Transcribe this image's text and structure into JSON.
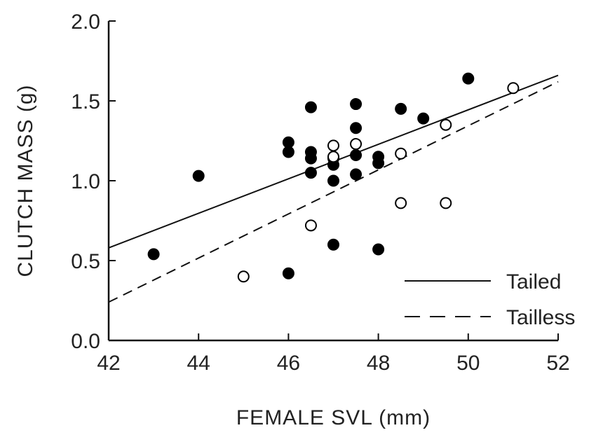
{
  "chart_data": {
    "type": "scatter",
    "xlabel": "FEMALE SVL (mm)",
    "ylabel": "CLUTCH MASS (g)",
    "xlim": [
      42,
      52
    ],
    "ylim": [
      0.0,
      2.0
    ],
    "x_ticks": [
      42,
      44,
      46,
      48,
      50,
      52
    ],
    "x_tick_labels": [
      "42",
      "44",
      "46",
      "48",
      "50",
      "52"
    ],
    "y_ticks": [
      0.0,
      0.5,
      1.0,
      1.5,
      2.0
    ],
    "y_tick_labels": [
      "0.0",
      "0.5",
      "1.0",
      "1.5",
      "2.0"
    ],
    "grid": false,
    "legend_position": "bottom-right",
    "series": [
      {
        "name": "Tailed",
        "marker": "filled-circle",
        "color": "#000000",
        "points": [
          {
            "x": 43.0,
            "y": 0.54
          },
          {
            "x": 44.0,
            "y": 1.03
          },
          {
            "x": 46.0,
            "y": 1.24
          },
          {
            "x": 46.0,
            "y": 1.18
          },
          {
            "x": 46.0,
            "y": 0.42
          },
          {
            "x": 46.5,
            "y": 1.46
          },
          {
            "x": 46.5,
            "y": 1.18
          },
          {
            "x": 46.5,
            "y": 1.14
          },
          {
            "x": 46.5,
            "y": 1.05
          },
          {
            "x": 47.0,
            "y": 1.14
          },
          {
            "x": 47.0,
            "y": 1.1
          },
          {
            "x": 47.0,
            "y": 1.0
          },
          {
            "x": 47.0,
            "y": 0.6
          },
          {
            "x": 47.5,
            "y": 1.48
          },
          {
            "x": 47.5,
            "y": 1.33
          },
          {
            "x": 47.5,
            "y": 1.16
          },
          {
            "x": 47.5,
            "y": 1.04
          },
          {
            "x": 48.0,
            "y": 1.15
          },
          {
            "x": 48.0,
            "y": 1.11
          },
          {
            "x": 48.0,
            "y": 0.57
          },
          {
            "x": 48.5,
            "y": 1.45
          },
          {
            "x": 49.0,
            "y": 1.39
          },
          {
            "x": 50.0,
            "y": 1.64
          }
        ],
        "fit": {
          "x": [
            42,
            52
          ],
          "y": [
            0.58,
            1.66
          ],
          "style": "solid"
        }
      },
      {
        "name": "Tailless",
        "marker": "open-circle",
        "color": "#000000",
        "points": [
          {
            "x": 45.0,
            "y": 0.4
          },
          {
            "x": 46.5,
            "y": 0.72
          },
          {
            "x": 47.0,
            "y": 1.22
          },
          {
            "x": 47.0,
            "y": 1.15
          },
          {
            "x": 47.5,
            "y": 1.23
          },
          {
            "x": 48.5,
            "y": 1.17
          },
          {
            "x": 48.5,
            "y": 0.86
          },
          {
            "x": 49.5,
            "y": 1.35
          },
          {
            "x": 49.5,
            "y": 0.86
          },
          {
            "x": 51.0,
            "y": 1.58
          }
        ],
        "fit": {
          "x": [
            42,
            52
          ],
          "y": [
            0.24,
            1.62
          ],
          "style": "dashed"
        }
      }
    ]
  }
}
